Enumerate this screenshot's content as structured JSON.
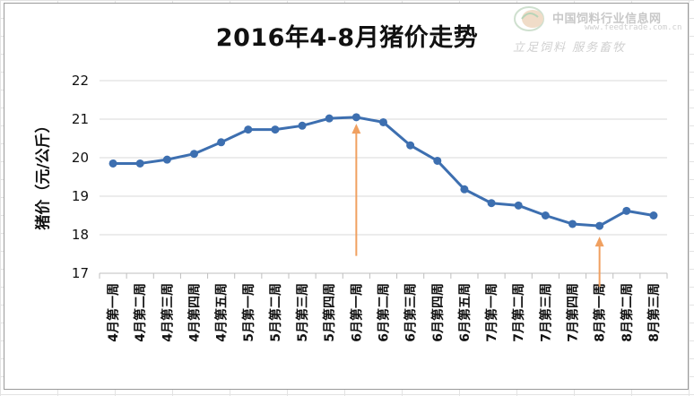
{
  "chart_data": {
    "type": "line",
    "title": "2016年4-8月猪价走势",
    "xlabel": "",
    "ylabel": "猪价（元/公斤）",
    "ylim": [
      17,
      22
    ],
    "yticks": [
      17,
      18,
      19,
      20,
      21,
      22
    ],
    "grid": true,
    "legend": "none",
    "categories": [
      "4月第一周",
      "4月第二周",
      "4月第三周",
      "4月第四周",
      "4月第五周",
      "5月第一周",
      "5月第二周",
      "5月第三周",
      "5月第四周",
      "6月第一周",
      "6月第二周",
      "6月第三周",
      "6月第四周",
      "6月第五周",
      "7月第一周",
      "7月第二周",
      "7月第三周",
      "7月第四周",
      "8月第一周",
      "8月第二周",
      "8月第三周"
    ],
    "series": [
      {
        "values": [
          19.85,
          19.85,
          19.95,
          20.1,
          20.4,
          20.73,
          20.73,
          20.83,
          21.02,
          21.05,
          20.92,
          20.32,
          19.92,
          19.18,
          18.82,
          18.76,
          18.5,
          18.28,
          18.23,
          18.62,
          18.5
        ],
        "color": "#3d6fb0"
      }
    ],
    "annotations": [
      {
        "type": "arrow",
        "category": "6月第一周",
        "from_y": 17.45,
        "to_y": 20.88,
        "color": "#f0a060"
      },
      {
        "type": "arrow",
        "category": "8月第一周",
        "from_y": 16.65,
        "to_y": 17.95,
        "color": "#f0a060"
      }
    ]
  },
  "watermark": {
    "name": "中国饲料行业信息网",
    "url": "www.feedtrade.com.cn",
    "slogan": "立足饲料 服务畜牧"
  }
}
